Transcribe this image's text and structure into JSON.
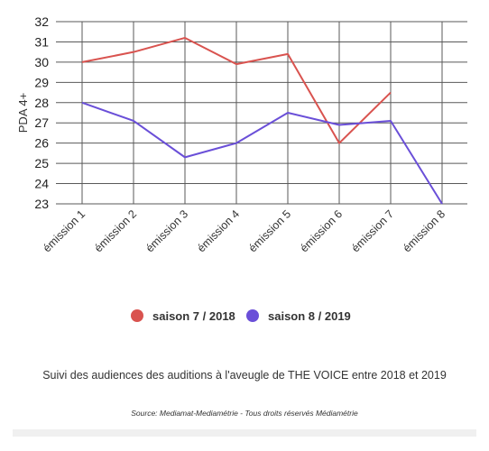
{
  "chart_data": {
    "type": "line",
    "title": "",
    "xlabel": "",
    "ylabel": "PDA 4+",
    "categories": [
      "émission 1",
      "émission 2",
      "émission 3",
      "émission 4",
      "émission 5",
      "émission 6",
      "émission 7",
      "émission 8"
    ],
    "ylim": [
      23,
      32
    ],
    "yticks": [
      23,
      24,
      25,
      26,
      27,
      28,
      29,
      30,
      31,
      32
    ],
    "grid": true,
    "legend_position": "bottom",
    "series": [
      {
        "name": "saison 7 / 2018",
        "color": "#d9534f",
        "values": [
          30.0,
          30.5,
          31.2,
          29.9,
          30.4,
          26.0,
          28.5,
          null
        ]
      },
      {
        "name": "saison 8 / 2019",
        "color": "#6a4fd8",
        "values": [
          28.0,
          27.1,
          25.3,
          26.0,
          27.5,
          26.9,
          27.1,
          23.0
        ]
      }
    ]
  },
  "caption": "Suivi des audiences des auditions à l'aveugle de THE VOICE entre 2018 et 2019",
  "source": "Source: Mediamat-Mediamétrie - Tous droits réservés Médiamétrie"
}
